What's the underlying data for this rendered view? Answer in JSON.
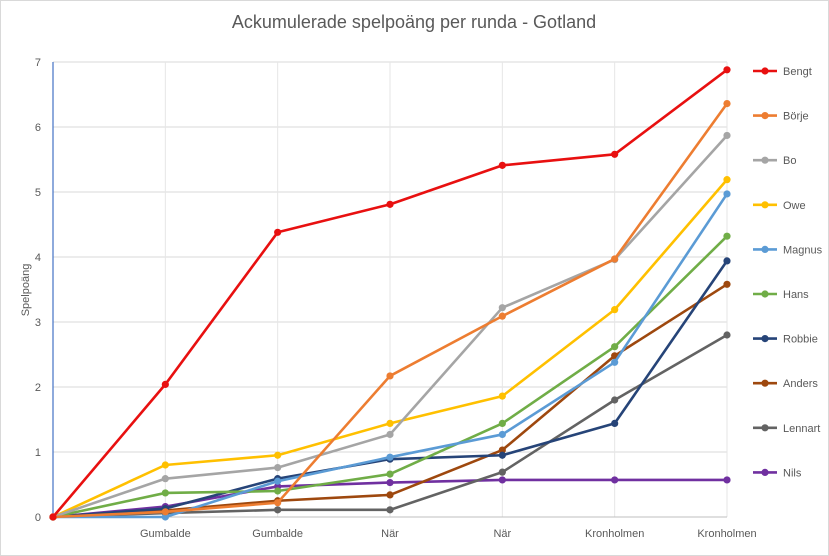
{
  "chart_data": {
    "type": "line",
    "title": "Ackumulerade spelpoäng per runda - Gotland",
    "xlabel": "",
    "ylabel": "Spelpoäng",
    "ylim": [
      0,
      7
    ],
    "yticks": [
      "0",
      "1",
      "2",
      "3",
      "4",
      "5",
      "6",
      "7"
    ],
    "categories": [
      "",
      "Gumbalde",
      "Gumbalde",
      "När",
      "När",
      "Kronholmen",
      "Kronholmen"
    ],
    "legend_position": "right",
    "series": [
      {
        "name": "Bengt",
        "color": "#e81010",
        "values": [
          0,
          2.04,
          4.38,
          4.81,
          5.41,
          5.58,
          6.88
        ]
      },
      {
        "name": "Börje",
        "color": "#ed7d31",
        "values": [
          0,
          0.08,
          0.22,
          2.17,
          3.09,
          3.97,
          6.36
        ]
      },
      {
        "name": "Bo",
        "color": "#a5a5a5",
        "values": [
          0,
          0.59,
          0.76,
          1.27,
          3.22,
          3.96,
          5.87
        ]
      },
      {
        "name": "Owe",
        "color": "#ffc000",
        "values": [
          0,
          0.8,
          0.95,
          1.44,
          1.86,
          3.19,
          5.19
        ]
      },
      {
        "name": "Magnus",
        "color": "#5b9bd5",
        "values": [
          0,
          0.0,
          0.55,
          0.92,
          1.27,
          2.38,
          4.97
        ]
      },
      {
        "name": "Hans",
        "color": "#70ad47",
        "values": [
          0,
          0.37,
          0.4,
          0.66,
          1.44,
          2.62,
          4.32
        ]
      },
      {
        "name": "Robbie",
        "color": "#264478",
        "values": [
          0,
          0.13,
          0.59,
          0.89,
          0.95,
          1.44,
          3.94
        ]
      },
      {
        "name": "Anders",
        "color": "#9e480e",
        "values": [
          0,
          0.1,
          0.25,
          0.34,
          1.03,
          2.48,
          3.58
        ]
      },
      {
        "name": "Lennart",
        "color": "#636363",
        "values": [
          0,
          0.06,
          0.11,
          0.11,
          0.69,
          1.8,
          2.8
        ]
      },
      {
        "name": "Nils",
        "color": "#7030a0",
        "values": [
          0,
          0.16,
          0.47,
          0.53,
          0.57,
          0.57,
          0.57
        ]
      }
    ]
  }
}
